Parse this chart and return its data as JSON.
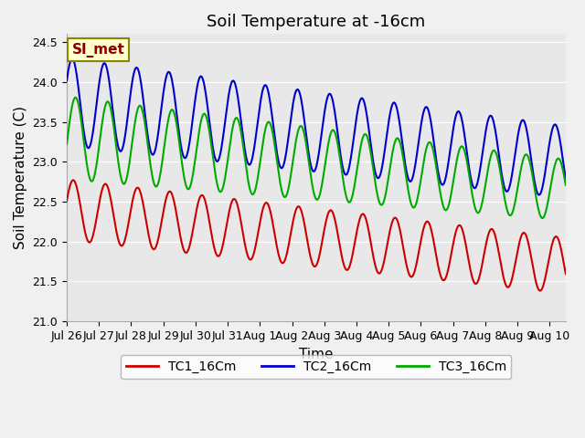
{
  "title": "Soil Temperature at -16cm",
  "xlabel": "Time",
  "ylabel": "Soil Temperature (C)",
  "ylim": [
    21.0,
    24.6
  ],
  "yticks": [
    21.0,
    21.5,
    22.0,
    22.5,
    23.0,
    23.5,
    24.0,
    24.5
  ],
  "xlim_days": [
    0,
    15.5
  ],
  "x_tick_labels": [
    "Jul 26",
    "Jul 27",
    "Jul 28",
    "Jul 29",
    "Jul 30",
    "Jul 31",
    "Aug 1",
    "Aug 2",
    "Aug 3",
    "Aug 4",
    "Aug 5",
    "Aug 6",
    "Aug 7",
    "Aug 8",
    "Aug 9",
    "Aug 10"
  ],
  "colors": {
    "TC1": "#cc0000",
    "TC2": "#0000cc",
    "TC3": "#00aa00"
  },
  "legend_labels": [
    "TC1_16Cm",
    "TC2_16Cm",
    "TC3_16Cm"
  ],
  "annotation_text": "SI_met",
  "annotation_color": "#8b0000",
  "annotation_bg": "#ffffcc",
  "background_color": "#e8e8e8",
  "plot_bg": "#e8e8e8",
  "line_width": 1.5,
  "title_fontsize": 13,
  "axis_fontsize": 11,
  "tick_fontsize": 9
}
